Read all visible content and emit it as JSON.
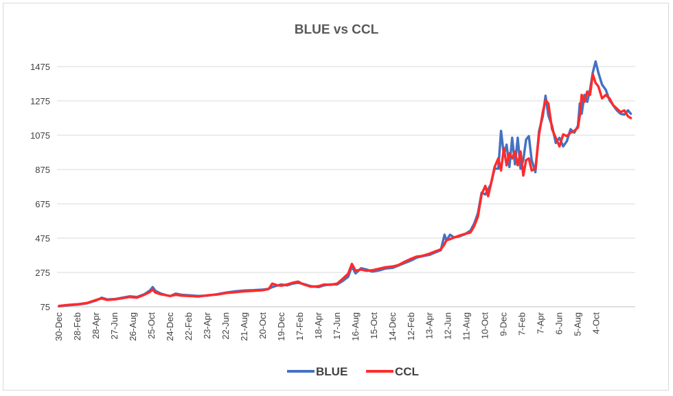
{
  "chart_data": {
    "type": "line",
    "title": "BLUE vs CCL",
    "xlabel": "",
    "ylabel": "",
    "ylim": [
      75,
      1575
    ],
    "yticks": [
      75,
      275,
      475,
      675,
      875,
      1075,
      1275,
      1475
    ],
    "categories": [
      "30-Dec",
      "28-Feb",
      "28-Apr",
      "27-Jun",
      "26-Aug",
      "25-Oct",
      "24-Dec",
      "22-Feb",
      "23-Apr",
      "22-Jun",
      "21-Aug",
      "20-Oct",
      "19-Dec",
      "17-Feb",
      "18-Apr",
      "17-Jun",
      "16-Aug",
      "15-Oct",
      "14-Dec",
      "12-Feb",
      "13-Apr",
      "12-Jun",
      "11-Aug",
      "10-Oct",
      "9-Dec",
      "7-Feb",
      "7-Apr",
      "6-Jun",
      "5-Aug",
      "4-Oct"
    ],
    "grid": true,
    "legend_position": "bottom",
    "series": [
      {
        "name": "BLUE",
        "color": "#4472c4",
        "points": [
          [
            0,
            78
          ],
          [
            0.5,
            84
          ],
          [
            1,
            88
          ],
          [
            1.5,
            95
          ],
          [
            2,
            112
          ],
          [
            2.3,
            128
          ],
          [
            2.6,
            118
          ],
          [
            3,
            120
          ],
          [
            3.4,
            128
          ],
          [
            3.8,
            136
          ],
          [
            4.2,
            132
          ],
          [
            4.6,
            148
          ],
          [
            4.9,
            170
          ],
          [
            5.05,
            190
          ],
          [
            5.2,
            168
          ],
          [
            5.5,
            152
          ],
          [
            5.8,
            142
          ],
          [
            6,
            138
          ],
          [
            6.3,
            152
          ],
          [
            6.6,
            145
          ],
          [
            7,
            142
          ],
          [
            7.5,
            138
          ],
          [
            8,
            140
          ],
          [
            8.5,
            148
          ],
          [
            9,
            158
          ],
          [
            9.5,
            165
          ],
          [
            10,
            170
          ],
          [
            10.5,
            172
          ],
          [
            11,
            175
          ],
          [
            11.3,
            180
          ],
          [
            11.5,
            190
          ],
          [
            11.8,
            200
          ],
          [
            12,
            205
          ],
          [
            12.3,
            200
          ],
          [
            12.6,
            210
          ],
          [
            12.9,
            215
          ],
          [
            13.2,
            208
          ],
          [
            13.6,
            195
          ],
          [
            14,
            190
          ],
          [
            14.3,
            200
          ],
          [
            14.6,
            205
          ],
          [
            15,
            205
          ],
          [
            15.3,
            225
          ],
          [
            15.6,
            250
          ],
          [
            15.8,
            310
          ],
          [
            16,
            270
          ],
          [
            16.3,
            300
          ],
          [
            16.6,
            292
          ],
          [
            16.9,
            280
          ],
          [
            17.3,
            288
          ],
          [
            17.6,
            298
          ],
          [
            18,
            302
          ],
          [
            18.3,
            315
          ],
          [
            18.6,
            328
          ],
          [
            19,
            345
          ],
          [
            19.3,
            362
          ],
          [
            19.6,
            370
          ],
          [
            20,
            378
          ],
          [
            20.3,
            392
          ],
          [
            20.6,
            405
          ],
          [
            20.8,
            495
          ],
          [
            20.9,
            462
          ],
          [
            21.1,
            495
          ],
          [
            21.3,
            480
          ],
          [
            21.6,
            485
          ],
          [
            21.9,
            498
          ],
          [
            22.2,
            520
          ],
          [
            22.4,
            560
          ],
          [
            22.6,
            620
          ],
          [
            22.8,
            740
          ],
          [
            23,
            730
          ],
          [
            23.15,
            760
          ],
          [
            23.3,
            790
          ],
          [
            23.5,
            880
          ],
          [
            23.7,
            880
          ],
          [
            23.85,
            1100
          ],
          [
            24,
            960
          ],
          [
            24.15,
            1020
          ],
          [
            24.3,
            890
          ],
          [
            24.45,
            1060
          ],
          [
            24.6,
            905
          ],
          [
            24.75,
            1060
          ],
          [
            24.9,
            880
          ],
          [
            25.05,
            930
          ],
          [
            25.2,
            1050
          ],
          [
            25.35,
            1070
          ],
          [
            25.5,
            930
          ],
          [
            25.7,
            860
          ],
          [
            25.9,
            1100
          ],
          [
            26.1,
            1185
          ],
          [
            26.25,
            1305
          ],
          [
            26.4,
            1190
          ],
          [
            26.6,
            1130
          ],
          [
            26.8,
            1030
          ],
          [
            27,
            1060
          ],
          [
            27.2,
            1010
          ],
          [
            27.4,
            1040
          ],
          [
            27.6,
            1110
          ],
          [
            27.8,
            1090
          ],
          [
            28,
            1130
          ],
          [
            28.1,
            1260
          ],
          [
            28.2,
            1200
          ],
          [
            28.35,
            1310
          ],
          [
            28.5,
            1270
          ],
          [
            28.65,
            1340
          ],
          [
            28.8,
            1440
          ],
          [
            28.95,
            1505
          ],
          [
            29.1,
            1440
          ],
          [
            29.3,
            1370
          ],
          [
            29.5,
            1340
          ],
          [
            29.7,
            1280
          ],
          [
            29.9,
            1250
          ],
          [
            30.1,
            1220
          ],
          [
            30.3,
            1200
          ],
          [
            30.5,
            1195
          ],
          [
            30.7,
            1220
          ],
          [
            30.85,
            1200
          ]
        ]
      },
      {
        "name": "CCL",
        "color": "#ff2b2b",
        "points": [
          [
            0,
            80
          ],
          [
            0.5,
            86
          ],
          [
            1,
            90
          ],
          [
            1.5,
            97
          ],
          [
            2,
            115
          ],
          [
            2.3,
            124
          ],
          [
            2.6,
            115
          ],
          [
            3,
            118
          ],
          [
            3.4,
            125
          ],
          [
            3.8,
            132
          ],
          [
            4.2,
            128
          ],
          [
            4.6,
            145
          ],
          [
            4.9,
            162
          ],
          [
            5.05,
            175
          ],
          [
            5.2,
            158
          ],
          [
            5.5,
            148
          ],
          [
            5.8,
            142
          ],
          [
            6,
            138
          ],
          [
            6.3,
            145
          ],
          [
            6.6,
            140
          ],
          [
            7,
            138
          ],
          [
            7.5,
            135
          ],
          [
            8,
            142
          ],
          [
            8.5,
            146
          ],
          [
            9,
            155
          ],
          [
            9.5,
            160
          ],
          [
            10,
            165
          ],
          [
            10.5,
            168
          ],
          [
            11,
            172
          ],
          [
            11.3,
            178
          ],
          [
            11.5,
            210
          ],
          [
            11.8,
            200
          ],
          [
            12,
            198
          ],
          [
            12.3,
            205
          ],
          [
            12.6,
            215
          ],
          [
            12.9,
            222
          ],
          [
            13.2,
            205
          ],
          [
            13.6,
            192
          ],
          [
            14,
            195
          ],
          [
            14.3,
            205
          ],
          [
            14.6,
            203
          ],
          [
            15,
            210
          ],
          [
            15.3,
            238
          ],
          [
            15.6,
            268
          ],
          [
            15.8,
            325
          ],
          [
            16,
            285
          ],
          [
            16.3,
            292
          ],
          [
            16.6,
            285
          ],
          [
            16.9,
            288
          ],
          [
            17.3,
            298
          ],
          [
            17.6,
            305
          ],
          [
            18,
            310
          ],
          [
            18.3,
            318
          ],
          [
            18.6,
            335
          ],
          [
            19,
            355
          ],
          [
            19.3,
            368
          ],
          [
            19.6,
            372
          ],
          [
            20,
            385
          ],
          [
            20.3,
            398
          ],
          [
            20.6,
            410
          ],
          [
            20.8,
            440
          ],
          [
            20.9,
            462
          ],
          [
            21.1,
            470
          ],
          [
            21.3,
            478
          ],
          [
            21.6,
            490
          ],
          [
            21.9,
            500
          ],
          [
            22.2,
            508
          ],
          [
            22.4,
            545
          ],
          [
            22.6,
            600
          ],
          [
            22.8,
            730
          ],
          [
            23,
            780
          ],
          [
            23.15,
            720
          ],
          [
            23.3,
            790
          ],
          [
            23.5,
            890
          ],
          [
            23.7,
            940
          ],
          [
            23.85,
            870
          ],
          [
            24,
            1000
          ],
          [
            24.15,
            900
          ],
          [
            24.3,
            970
          ],
          [
            24.45,
            940
          ],
          [
            24.6,
            980
          ],
          [
            24.75,
            900
          ],
          [
            24.9,
            980
          ],
          [
            25.05,
            840
          ],
          [
            25.2,
            930
          ],
          [
            25.35,
            940
          ],
          [
            25.5,
            870
          ],
          [
            25.7,
            880
          ],
          [
            25.9,
            1080
          ],
          [
            26.1,
            1210
          ],
          [
            26.25,
            1280
          ],
          [
            26.4,
            1260
          ],
          [
            26.6,
            1110
          ],
          [
            26.8,
            1060
          ],
          [
            27,
            1010
          ],
          [
            27.2,
            1080
          ],
          [
            27.4,
            1070
          ],
          [
            27.6,
            1090
          ],
          [
            27.8,
            1100
          ],
          [
            28,
            1120
          ],
          [
            28.1,
            1190
          ],
          [
            28.2,
            1310
          ],
          [
            28.35,
            1270
          ],
          [
            28.5,
            1330
          ],
          [
            28.65,
            1310
          ],
          [
            28.8,
            1430
          ],
          [
            28.95,
            1380
          ],
          [
            29.1,
            1360
          ],
          [
            29.3,
            1290
          ],
          [
            29.5,
            1310
          ],
          [
            29.7,
            1290
          ],
          [
            29.9,
            1250
          ],
          [
            30.1,
            1230
          ],
          [
            30.3,
            1210
          ],
          [
            30.5,
            1220
          ],
          [
            30.7,
            1185
          ],
          [
            30.85,
            1175
          ]
        ]
      }
    ]
  }
}
